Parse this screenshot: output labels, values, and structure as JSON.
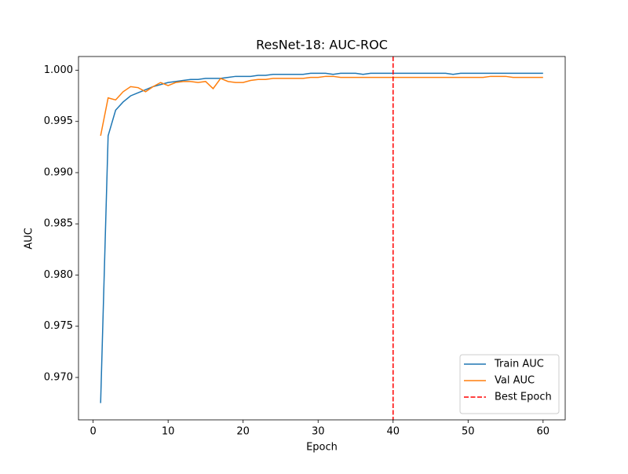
{
  "chart_data": {
    "type": "line",
    "title": "ResNet-18: AUC-ROC",
    "x_label": "Epoch",
    "y_label": "AUC",
    "x": [
      1,
      2,
      3,
      4,
      5,
      6,
      7,
      8,
      9,
      10,
      11,
      12,
      13,
      14,
      15,
      16,
      17,
      18,
      19,
      20,
      21,
      22,
      23,
      24,
      25,
      26,
      27,
      28,
      29,
      30,
      31,
      32,
      33,
      34,
      35,
      36,
      37,
      38,
      39,
      40,
      41,
      42,
      43,
      44,
      45,
      46,
      47,
      48,
      49,
      50,
      51,
      52,
      53,
      54,
      55,
      56,
      57,
      58,
      59,
      60
    ],
    "series": [
      {
        "name": "Train AUC",
        "color": "#1f77b4",
        "values": [
          0.9675,
          0.9936,
          0.9961,
          0.9969,
          0.9975,
          0.9978,
          0.9981,
          0.9984,
          0.9986,
          0.9988,
          0.9989,
          0.999,
          0.9991,
          0.9991,
          0.9992,
          0.9992,
          0.9992,
          0.9993,
          0.9994,
          0.9994,
          0.9994,
          0.9995,
          0.9995,
          0.9996,
          0.9996,
          0.9996,
          0.9996,
          0.9996,
          0.9997,
          0.9997,
          0.9997,
          0.9996,
          0.9997,
          0.9997,
          0.9997,
          0.9996,
          0.9997,
          0.9997,
          0.9997,
          0.9997,
          0.9997,
          0.9997,
          0.9997,
          0.9997,
          0.9997,
          0.9997,
          0.9997,
          0.9996,
          0.9997,
          0.9997,
          0.9997,
          0.9997,
          0.9997,
          0.9997,
          0.9997,
          0.9997,
          0.9997,
          0.9997,
          0.9997,
          0.9997
        ]
      },
      {
        "name": "Val AUC",
        "color": "#ff7f0e",
        "values": [
          0.9936,
          0.9973,
          0.9971,
          0.9979,
          0.9984,
          0.9983,
          0.9979,
          0.9984,
          0.9988,
          0.9985,
          0.9988,
          0.9989,
          0.9989,
          0.9988,
          0.9989,
          0.9982,
          0.9992,
          0.9989,
          0.9988,
          0.9988,
          0.999,
          0.9991,
          0.9991,
          0.9992,
          0.9992,
          0.9992,
          0.9992,
          0.9992,
          0.9993,
          0.9993,
          0.9994,
          0.9994,
          0.9993,
          0.9993,
          0.9993,
          0.9993,
          0.9993,
          0.9993,
          0.9993,
          0.9993,
          0.9993,
          0.9993,
          0.9993,
          0.9993,
          0.9993,
          0.9993,
          0.9993,
          0.9993,
          0.9993,
          0.9993,
          0.9993,
          0.9993,
          0.9994,
          0.9994,
          0.9994,
          0.9993,
          0.9993,
          0.9993,
          0.9993,
          0.9993
        ]
      }
    ],
    "vlines": [
      {
        "name": "Best Epoch",
        "x": 40,
        "color": "#ff0000"
      }
    ],
    "xlim": [
      -1.95,
      62.95
    ],
    "xticks": [
      0,
      10,
      20,
      30,
      40,
      50,
      60
    ],
    "ylim": [
      0.96586,
      1.00134
    ],
    "yticks": [
      {
        "value": 0.97,
        "label": "0.970"
      },
      0.975,
      {
        "value": 0.98,
        "label": "0.980"
      },
      0.985,
      {
        "value": 0.99,
        "label": "0.990"
      },
      0.995,
      {
        "value": 1.0,
        "label": "1.000"
      }
    ],
    "legend": "lower right"
  }
}
